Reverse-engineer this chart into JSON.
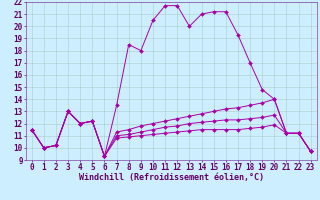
{
  "xlabel": "Windchill (Refroidissement éolien,°C)",
  "bg_color": "#cceeff",
  "grid_color": "#aacccc",
  "line_color": "#aa00aa",
  "x_values": [
    0,
    1,
    2,
    3,
    4,
    5,
    6,
    7,
    8,
    9,
    10,
    11,
    12,
    13,
    14,
    15,
    16,
    17,
    18,
    19,
    20,
    21,
    22,
    23
  ],
  "series1": [
    11.5,
    10.0,
    10.2,
    13.0,
    12.0,
    12.2,
    9.3,
    13.5,
    18.5,
    18.0,
    20.5,
    21.7,
    21.7,
    20.0,
    21.0,
    21.2,
    21.2,
    19.3,
    17.0,
    14.8,
    14.0,
    11.2,
    11.2,
    9.7
  ],
  "series2": [
    11.5,
    10.0,
    10.2,
    13.0,
    12.0,
    12.2,
    9.3,
    11.3,
    11.5,
    11.8,
    12.0,
    12.2,
    12.4,
    12.6,
    12.8,
    13.0,
    13.2,
    13.3,
    13.5,
    13.7,
    14.0,
    11.2,
    11.2,
    9.7
  ],
  "series3": [
    11.5,
    10.0,
    10.2,
    13.0,
    12.0,
    12.2,
    9.3,
    11.0,
    11.1,
    11.3,
    11.5,
    11.7,
    11.8,
    12.0,
    12.1,
    12.2,
    12.3,
    12.3,
    12.4,
    12.5,
    12.7,
    11.2,
    11.2,
    9.7
  ],
  "series4": [
    11.5,
    10.0,
    10.2,
    13.0,
    12.0,
    12.2,
    9.3,
    10.8,
    10.9,
    11.0,
    11.1,
    11.2,
    11.3,
    11.4,
    11.5,
    11.5,
    11.5,
    11.5,
    11.6,
    11.7,
    11.9,
    11.2,
    11.2,
    9.7
  ],
  "ylim_min": 9,
  "ylim_max": 22,
  "xlim_min": 0,
  "xlim_max": 23,
  "yticks": [
    9,
    10,
    11,
    12,
    13,
    14,
    15,
    16,
    17,
    18,
    19,
    20,
    21,
    22
  ],
  "xticks": [
    0,
    1,
    2,
    3,
    4,
    5,
    6,
    7,
    8,
    9,
    10,
    11,
    12,
    13,
    14,
    15,
    16,
    17,
    18,
    19,
    20,
    21,
    22,
    23
  ],
  "tick_color": "#660066",
  "spine_color": "#8844aa",
  "tick_fontsize": 5.5,
  "xlabel_fontsize": 6.0,
  "xlabel_color": "#660066"
}
